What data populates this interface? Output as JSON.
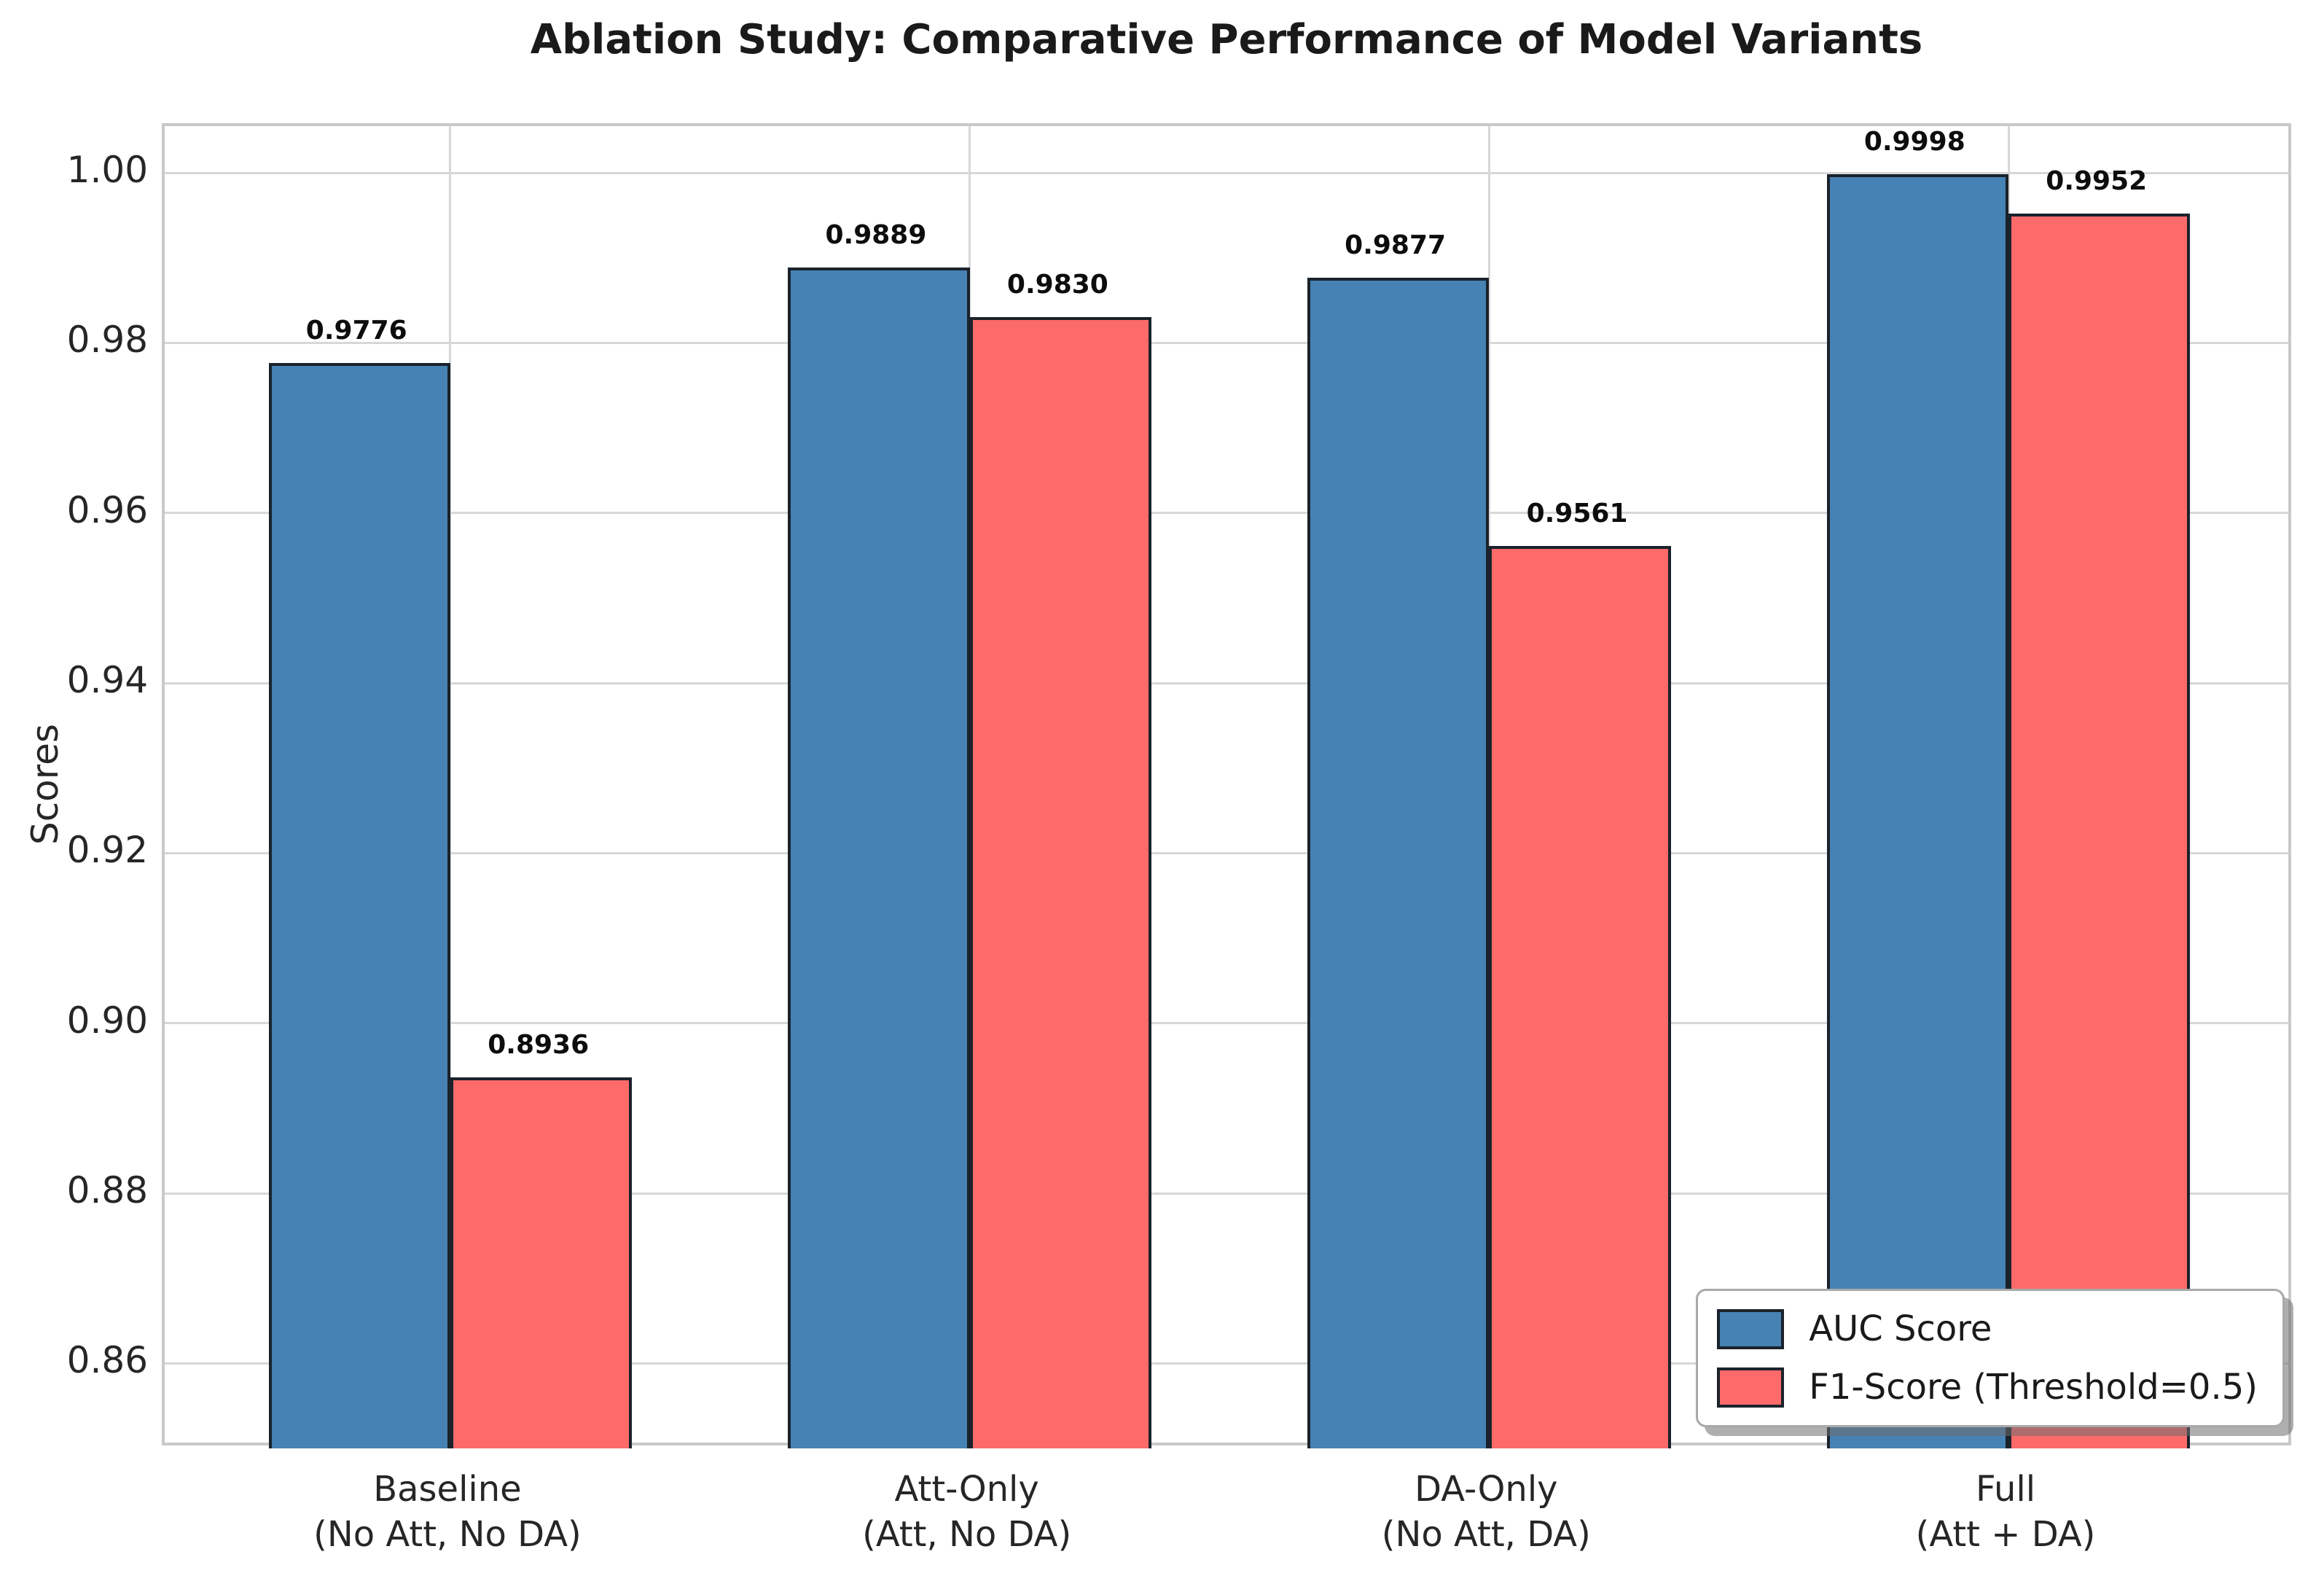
{
  "chart_data": {
    "type": "bar",
    "title": "Ablation Study: Comparative Performance of Model Variants",
    "ylabel": "Scores",
    "xlabel": "",
    "categories": [
      {
        "name": "Baseline",
        "detail": "(No Att, No DA)"
      },
      {
        "name": "Att-Only",
        "detail": "(Att, No DA)"
      },
      {
        "name": "DA-Only",
        "detail": "(No Att, DA)"
      },
      {
        "name": "Full",
        "detail": "(Att + DA)"
      }
    ],
    "series": [
      {
        "name": "AUC Score",
        "color": "#4682B4",
        "values": [
          0.9776,
          0.9889,
          0.9877,
          0.9998
        ],
        "value_labels": [
          "0.9776",
          "0.9889",
          "0.9877",
          "0.9998"
        ]
      },
      {
        "name": "F1-Score (Threshold=0.5)",
        "color": "#FC6A6A",
        "values": [
          0.8936,
          0.983,
          0.9561,
          0.9952
        ],
        "value_labels": [
          "0.8936",
          "0.9830",
          "0.9561",
          "0.9952"
        ]
      }
    ],
    "y_ticks": [
      {
        "value": 0.86,
        "label": "0.86"
      },
      {
        "value": 0.88,
        "label": "0.88"
      },
      {
        "value": 0.9,
        "label": "0.90"
      },
      {
        "value": 0.92,
        "label": "0.92"
      },
      {
        "value": 0.94,
        "label": "0.94"
      },
      {
        "value": 0.96,
        "label": "0.96"
      },
      {
        "value": 0.98,
        "label": "0.98"
      },
      {
        "value": 1.0,
        "label": "1.00"
      }
    ],
    "ylim": [
      0.85,
      1.0055
    ],
    "xlim": [
      -0.55,
      3.55
    ],
    "bar_width": 0.35,
    "bar_offset": 0.175,
    "grid": true,
    "legend_position": "lower right",
    "colors": {
      "bar_edge": "#1a222b",
      "grid": "#d7d7d7",
      "spine": "#c9c9c9",
      "text": "#262626",
      "title_text": "#1a1a1a",
      "background": "#ffffff"
    }
  }
}
